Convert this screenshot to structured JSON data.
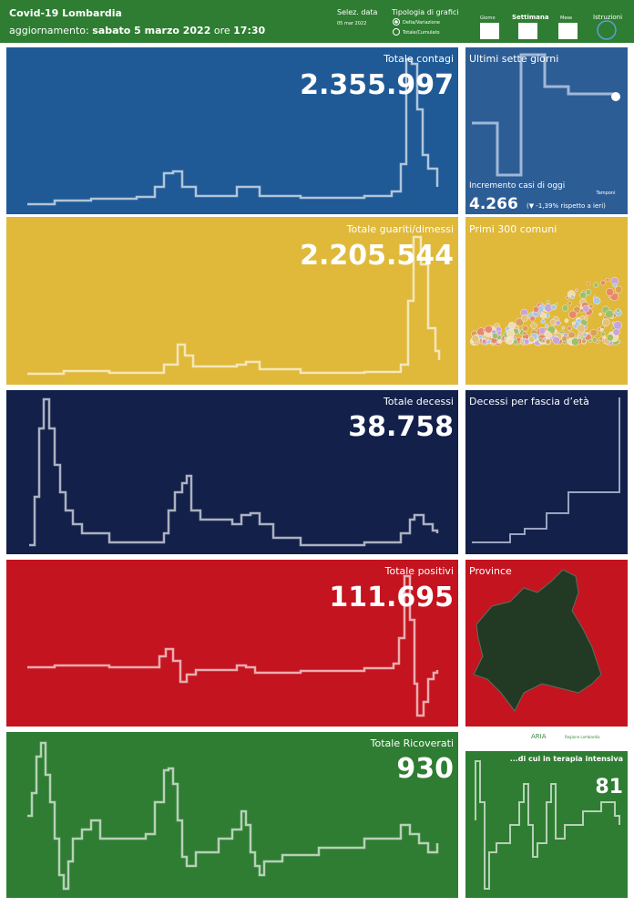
{
  "header": {
    "title": "Covid-19 Lombardia",
    "update_label": "aggiornamento:",
    "update_date": "sabato 5 marzo 2022",
    "update_time_label": "ore",
    "update_time": "17:30",
    "date_label": "Selez. data",
    "date_value": "05 mar 2022",
    "chart_type_label": "Tipologia di grafici",
    "chart_type_options": [
      "Delta/Variazione",
      "Totale/Cumulato"
    ],
    "period_options": [
      "Giorno",
      "Settimana",
      "Mese"
    ],
    "instructions": "Istruzioni"
  },
  "panels": {
    "contagi": {
      "title": "Totale contagi",
      "value": "2.355.997"
    },
    "sette_giorni": {
      "title": "Ultimi sette giorni",
      "increment_label": "Incremento casi di oggi",
      "increment_value": "4.266",
      "increment_note": "(▼ -1,39% rispetto a  ieri)",
      "tamponi": "Tamponi"
    },
    "guariti": {
      "title": "Totale guariti/dimessi",
      "value": "2.205.544"
    },
    "comuni": {
      "title": "Primi 300 comuni"
    },
    "decessi": {
      "title": "Totale decessi",
      "value": "38.758"
    },
    "fascia": {
      "title": "Decessi per fascia d’età"
    },
    "positivi": {
      "title": "Totale positivi",
      "value": "111.695"
    },
    "province": {
      "title": "Province"
    },
    "ricoverati": {
      "title": "Totale Ricoverati",
      "value": "930"
    },
    "terapia": {
      "title": "...di cui in terapia intensiva",
      "value": "81"
    },
    "logos": [
      "ARIA",
      "Regione Lombardia"
    ]
  }
}
